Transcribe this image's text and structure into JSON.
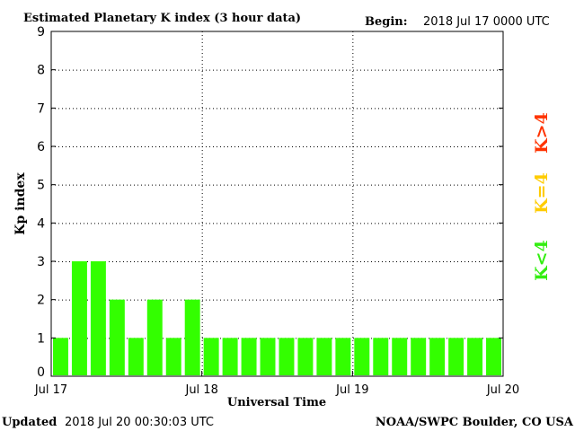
{
  "header": {
    "title": "Estimated Planetary K index (3 hour data)",
    "begin_label": "Begin:",
    "begin_value": "2018 Jul 17 0000 UTC"
  },
  "footer": {
    "updated_label": "Updated",
    "updated_value": "2018 Jul 20 00:30:03 UTC",
    "source": "NOAA/SWPC Boulder, CO USA"
  },
  "legend": [
    {
      "label": "K>4",
      "color": "#ff3300"
    },
    {
      "label": "K=4",
      "color": "#ffcc00"
    },
    {
      "label": "K<4",
      "color": "#33ee11"
    }
  ],
  "chart_data": {
    "type": "bar",
    "title": "Estimated Planetary K index (3 hour data)",
    "xlabel": "Universal Time",
    "ylabel": "Kp index",
    "ylim": [
      0,
      9
    ],
    "yticks": [
      "0",
      "1",
      "2",
      "3",
      "4",
      "5",
      "6",
      "7",
      "8",
      "9"
    ],
    "xticks": [
      "Jul 17",
      "Jul 18",
      "Jul 19",
      "Jul 20"
    ],
    "bin_hours": 3,
    "categories": [
      "Jul 17 00-03",
      "Jul 17 03-06",
      "Jul 17 06-09",
      "Jul 17 09-12",
      "Jul 17 12-15",
      "Jul 17 15-18",
      "Jul 17 18-21",
      "Jul 17 21-24",
      "Jul 18 00-03",
      "Jul 18 03-06",
      "Jul 18 06-09",
      "Jul 18 09-12",
      "Jul 18 12-15",
      "Jul 18 15-18",
      "Jul 18 18-21",
      "Jul 18 21-24",
      "Jul 19 00-03",
      "Jul 19 03-06",
      "Jul 19 06-09",
      "Jul 19 09-12",
      "Jul 19 12-15",
      "Jul 19 15-18",
      "Jul 19 18-21",
      "Jul 19 21-24"
    ],
    "values": [
      1,
      3,
      3,
      2,
      1,
      2,
      1,
      2,
      1,
      1,
      1,
      1,
      1,
      1,
      1,
      1,
      1,
      1,
      1,
      1,
      1,
      1,
      1,
      1
    ],
    "bar_color": "#33ff00",
    "grid": true
  }
}
